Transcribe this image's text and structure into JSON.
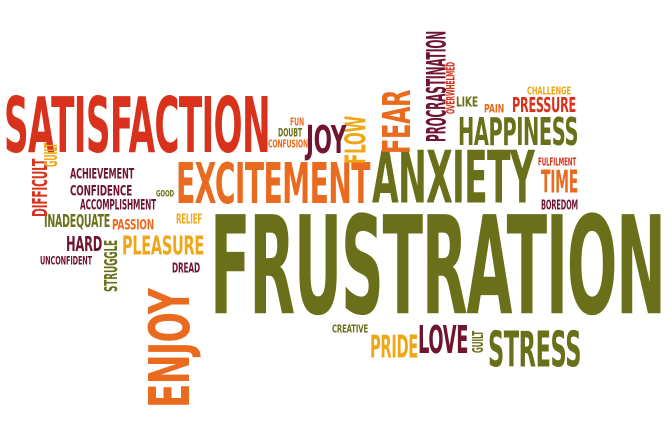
{
  "palette": {
    "red": "#d8321c",
    "orange": "#ea6a1f",
    "amber": "#efa617",
    "olive": "#6a7019",
    "maroon": "#6f1530",
    "white": "#ffffff"
  },
  "words": [
    {
      "id": "frustration",
      "text": "FRUSTRATION",
      "color": "#6a7019"
    },
    {
      "id": "anxiety",
      "text": "ANXIETY",
      "color": "#6a7019"
    },
    {
      "id": "satisfaction",
      "text": "SATISFACTION",
      "color": "#d8321c"
    },
    {
      "id": "excitement",
      "text": "EXCITEMENT",
      "color": "#ea6a1f"
    },
    {
      "id": "enjoy",
      "text": "ENJOY",
      "color": "#ea6a1f"
    },
    {
      "id": "happiness",
      "text": "HAPPINESS",
      "color": "#6a7019"
    },
    {
      "id": "stress",
      "text": "STRESS",
      "color": "#6a7019"
    },
    {
      "id": "love",
      "text": "LOVE",
      "color": "#6f1530"
    },
    {
      "id": "pride",
      "text": "PRIDE",
      "color": "#efa617"
    },
    {
      "id": "fear",
      "text": "FEAR",
      "color": "#ea6a1f"
    },
    {
      "id": "flow",
      "text": "FLOW",
      "color": "#efa617"
    },
    {
      "id": "joy",
      "text": "JOY",
      "color": "#6f1530"
    },
    {
      "id": "time",
      "text": "TIME",
      "color": "#ea6a1f"
    },
    {
      "id": "pressure",
      "text": "PRESSURE",
      "color": "#d8321c"
    },
    {
      "id": "procrastination",
      "text": "PROCRASTINATION",
      "color": "#6f1530"
    },
    {
      "id": "pleasure",
      "text": "PLEASURE",
      "color": "#efa617"
    },
    {
      "id": "hard",
      "text": "HARD",
      "color": "#6f1530"
    },
    {
      "id": "inadequate",
      "text": "INADEQUATE",
      "color": "#6a7019"
    },
    {
      "id": "difficult",
      "text": "DIFFICULT",
      "color": "#d8321c"
    },
    {
      "id": "achievement",
      "text": "ACHIEVEMENT",
      "color": "#6f1530"
    },
    {
      "id": "confidence",
      "text": "CONFIDENCE",
      "color": "#6f1530"
    },
    {
      "id": "accomplishment",
      "text": "ACCOMPLISHMENT",
      "color": "#6f1530"
    },
    {
      "id": "guilt-left",
      "text": "GUILT",
      "color": "#efa617"
    },
    {
      "id": "passion",
      "text": "PASSION",
      "color": "#ea6a1f"
    },
    {
      "id": "relief",
      "text": "RELIEF",
      "color": "#efa617"
    },
    {
      "id": "dread",
      "text": "DREAD",
      "color": "#6f1530"
    },
    {
      "id": "struggle",
      "text": "STRUGGLE",
      "color": "#6a7019"
    },
    {
      "id": "unconfident",
      "text": "UNCONFIDENT",
      "color": "#6f1530"
    },
    {
      "id": "good",
      "text": "GOOD",
      "color": "#6a7019"
    },
    {
      "id": "doubt",
      "text": "DOUBT",
      "color": "#6a7019"
    },
    {
      "id": "confusion",
      "text": "CONFUSION",
      "color": "#ea6a1f"
    },
    {
      "id": "fun",
      "text": "FUN",
      "color": "#ea6a1f"
    },
    {
      "id": "like",
      "text": "LIKE",
      "color": "#6a7019"
    },
    {
      "id": "pain",
      "text": "PAIN",
      "color": "#ea6a1f"
    },
    {
      "id": "overwhelmed",
      "text": "OVERWHELMED",
      "color": "#d8321c"
    },
    {
      "id": "challenge",
      "text": "CHALLENGE",
      "color": "#efa617"
    },
    {
      "id": "fulfilment",
      "text": "FULFILMENT",
      "color": "#d8321c"
    },
    {
      "id": "boredom",
      "text": "BOREDOM",
      "color": "#6f1530"
    },
    {
      "id": "creative",
      "text": "CREATIVE",
      "color": "#6a7019"
    },
    {
      "id": "guilt-right",
      "text": "GUILT",
      "color": "#6a7019"
    }
  ]
}
